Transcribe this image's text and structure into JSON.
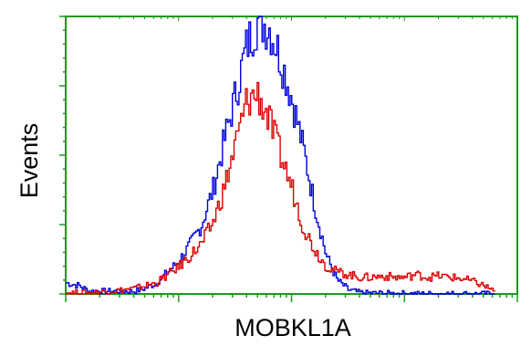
{
  "chart_data": {
    "type": "line",
    "title": "",
    "xlabel": "MOBKL1A",
    "ylabel": "Events",
    "x_scale": "log",
    "xlim": [
      1,
      10000
    ],
    "ylim": [
      0,
      100
    ],
    "grid": false,
    "legend": "none",
    "frame_color": "#1a9a1a",
    "series": [
      {
        "color": "#0000dd",
        "x": [
          1.0,
          1.3,
          1.6,
          2.0,
          2.5,
          3.2,
          4.0,
          5.0,
          6.3,
          8.0,
          10,
          12.6,
          15.8,
          20,
          25,
          31.6,
          40,
          50,
          63,
          79,
          100,
          126,
          158,
          200,
          251,
          316,
          398,
          501,
          631,
          794,
          1000,
          1259,
          1585,
          1995,
          2512,
          3162,
          3981,
          5012,
          6310
        ],
        "values": [
          4,
          3,
          1,
          1,
          1,
          1,
          1,
          2,
          4,
          8,
          12,
          18,
          25,
          38,
          55,
          72,
          90,
          99,
          96,
          85,
          70,
          52,
          32,
          14,
          5,
          1.5,
          0.5,
          0.3,
          0.3,
          0.2,
          0.2,
          0.1,
          0.1,
          0.1,
          0.1,
          0.1,
          0.1,
          0.1,
          0.1
        ]
      },
      {
        "color": "#dd0000",
        "x": [
          1.0,
          1.3,
          1.6,
          2.0,
          2.5,
          3.2,
          4.0,
          5.0,
          6.3,
          8.0,
          10,
          12.6,
          15.8,
          20,
          25,
          31.6,
          40,
          50,
          63,
          79,
          100,
          126,
          158,
          200,
          251,
          316,
          398,
          501,
          631,
          794,
          1000,
          1259,
          1585,
          1995,
          2512,
          3162,
          3981,
          5012,
          6310
        ],
        "values": [
          0.5,
          0.5,
          0.5,
          0.8,
          1,
          1.5,
          2,
          3,
          4,
          7,
          10,
          14,
          18,
          26,
          38,
          54,
          70,
          72,
          62,
          50,
          38,
          24,
          16,
          10,
          8,
          7,
          6,
          6,
          6.5,
          6,
          6,
          7,
          6,
          6.5,
          6,
          5.5,
          4.5,
          3,
          1
        ]
      }
    ]
  }
}
